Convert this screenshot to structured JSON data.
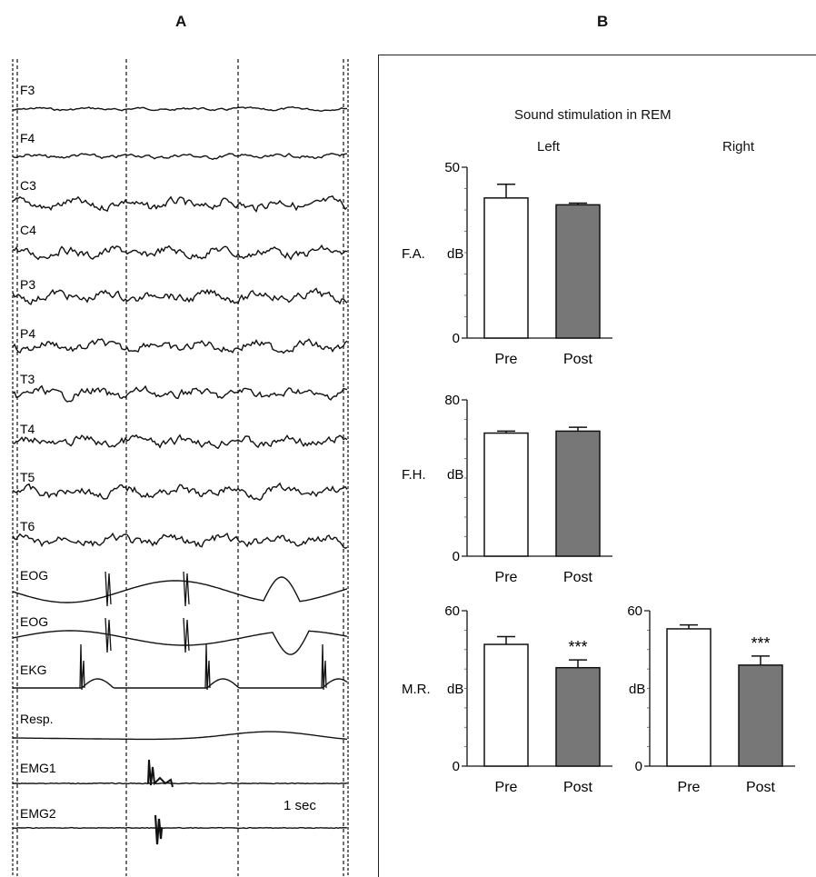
{
  "panel_a": {
    "letter": "A",
    "channels": [
      "F3",
      "F4",
      "C3",
      "C4",
      "P3",
      "P4",
      "T3",
      "T4",
      "T5",
      "T6",
      "EOG",
      "EOG",
      "EKG",
      "Resp.",
      "EMG1",
      "EMG2"
    ],
    "scale_label": "1 sec"
  },
  "panel_b": {
    "letter": "B",
    "title": "Sound stimulation in REM",
    "col_left": "Left",
    "col_right": "Right"
  },
  "chart_data": [
    {
      "type": "bar",
      "panel": "B",
      "side": "Left",
      "row_label": "F.A.",
      "ylabel": "dB",
      "ylim": [
        0,
        50
      ],
      "yticks": [
        0,
        50
      ],
      "categories": [
        "Pre",
        "Post"
      ],
      "values": [
        41,
        39
      ],
      "errors": [
        4,
        0.5
      ],
      "fills": [
        "#ffffff",
        "#777777"
      ],
      "annotations": [
        "",
        ""
      ]
    },
    {
      "type": "bar",
      "panel": "B",
      "side": "Left",
      "row_label": "F.H.",
      "ylabel": "dB",
      "ylim": [
        0,
        80
      ],
      "yticks": [
        0,
        80
      ],
      "categories": [
        "Pre",
        "Post"
      ],
      "values": [
        63,
        64
      ],
      "errors": [
        1,
        2
      ],
      "fills": [
        "#ffffff",
        "#777777"
      ],
      "annotations": [
        "",
        ""
      ]
    },
    {
      "type": "bar",
      "panel": "B",
      "side": "Left",
      "row_label": "M.R.",
      "ylabel": "dB",
      "ylim": [
        0,
        60
      ],
      "yticks": [
        0,
        60
      ],
      "categories": [
        "Pre",
        "Post"
      ],
      "values": [
        47,
        38
      ],
      "errors": [
        3,
        3
      ],
      "fills": [
        "#ffffff",
        "#777777"
      ],
      "annotations": [
        "",
        "***"
      ]
    },
    {
      "type": "bar",
      "panel": "B",
      "side": "Right",
      "row_label": "",
      "ylabel": "dB",
      "ylim": [
        0,
        60
      ],
      "yticks": [
        0,
        60
      ],
      "categories": [
        "Pre",
        "Post"
      ],
      "values": [
        53,
        39
      ],
      "errors": [
        1.5,
        3.5
      ],
      "fills": [
        "#ffffff",
        "#777777"
      ],
      "annotations": [
        "",
        "***"
      ]
    }
  ]
}
